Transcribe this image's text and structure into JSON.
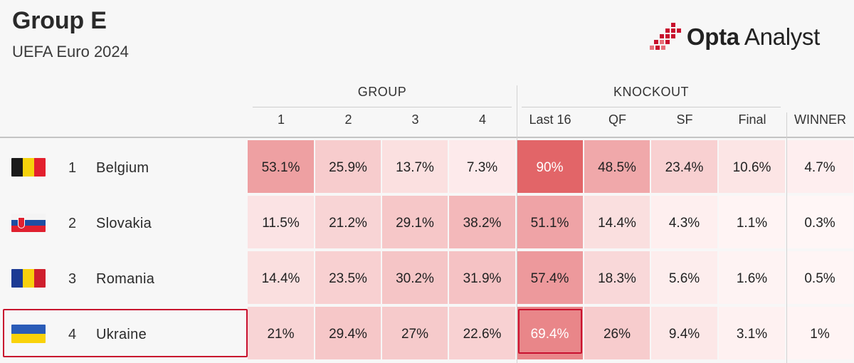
{
  "header": {
    "title": "Group E",
    "subtitle": "UEFA Euro 2024",
    "brand_primary": "Opta",
    "brand_secondary": "Analyst",
    "brand_color": "#c8102e"
  },
  "column_groups": [
    {
      "label": "GROUP",
      "columns": [
        "1",
        "2",
        "3",
        "4"
      ]
    },
    {
      "label": "KNOCKOUT",
      "columns": [
        "Last 16",
        "QF",
        "SF",
        "Final"
      ]
    },
    {
      "label": "",
      "columns": [
        "WINNER"
      ]
    }
  ],
  "chart_data": {
    "type": "table",
    "title": "Group E",
    "subtitle": "UEFA Euro 2024",
    "columns": [
      "1",
      "2",
      "3",
      "4",
      "Last 16",
      "QF",
      "SF",
      "Final",
      "WINNER"
    ],
    "rows": [
      {
        "rank": "1",
        "team": "Belgium",
        "flag": "belgium",
        "display": [
          "53.1%",
          "25.9%",
          "13.7%",
          "7.3%",
          "90%",
          "48.5%",
          "23.4%",
          "10.6%",
          "4.7%"
        ],
        "values": [
          53.1,
          25.9,
          13.7,
          7.3,
          90,
          48.5,
          23.4,
          10.6,
          4.7
        ]
      },
      {
        "rank": "2",
        "team": "Slovakia",
        "flag": "slovakia",
        "display": [
          "11.5%",
          "21.2%",
          "29.1%",
          "38.2%",
          "51.1%",
          "14.4%",
          "4.3%",
          "1.1%",
          "0.3%"
        ],
        "values": [
          11.5,
          21.2,
          29.1,
          38.2,
          51.1,
          14.4,
          4.3,
          1.1,
          0.3
        ]
      },
      {
        "rank": "3",
        "team": "Romania",
        "flag": "romania",
        "display": [
          "14.4%",
          "23.5%",
          "30.2%",
          "31.9%",
          "57.4%",
          "18.3%",
          "5.6%",
          "1.6%",
          "0.5%"
        ],
        "values": [
          14.4,
          23.5,
          30.2,
          31.9,
          57.4,
          18.3,
          5.6,
          1.6,
          0.5
        ]
      },
      {
        "rank": "4",
        "team": "Ukraine",
        "flag": "ukraine",
        "display": [
          "21%",
          "29.4%",
          "27%",
          "22.6%",
          "69.4%",
          "26%",
          "9.4%",
          "3.1%",
          "1%"
        ],
        "values": [
          21,
          29.4,
          27,
          22.6,
          69.4,
          26,
          9.4,
          3.1,
          1
        ],
        "highlighted": true,
        "highlighted_cell": "Last 16"
      }
    ],
    "heat_color": "#e35b5f",
    "highlight_color": "#c8102e"
  }
}
